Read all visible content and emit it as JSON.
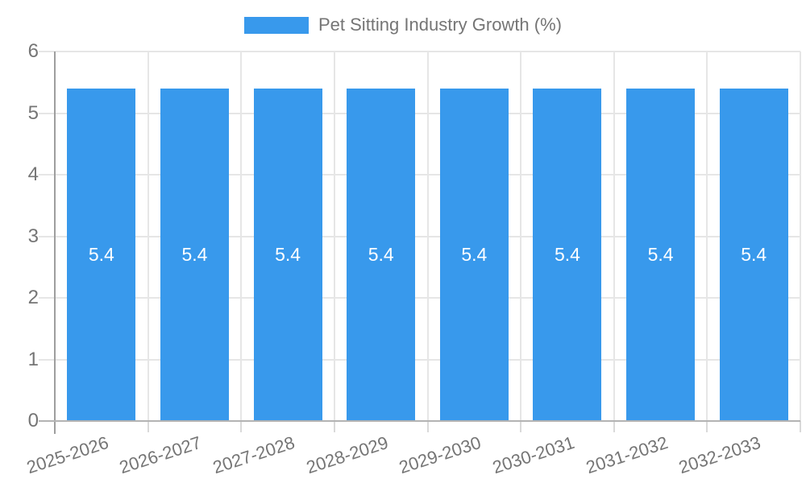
{
  "legend": {
    "label": "Pet Sitting Industry Growth (%)"
  },
  "chart_data": {
    "type": "bar",
    "title": "Pet Sitting Industry Growth (%)",
    "categories": [
      "2025-2026",
      "2026-2027",
      "2027-2028",
      "2028-2029",
      "2029-2030",
      "2030-2031",
      "2031-2032",
      "2032-2033"
    ],
    "series": [
      {
        "name": "Pet Sitting Industry Growth (%)",
        "values": [
          5.4,
          5.4,
          5.4,
          5.4,
          5.4,
          5.4,
          5.4,
          5.4
        ]
      }
    ],
    "value_labels": [
      "5.4",
      "5.4",
      "5.4",
      "5.4",
      "5.4",
      "5.4",
      "5.4",
      "5.4"
    ],
    "xlabel": "",
    "ylabel": "",
    "ylim": [
      0,
      6
    ],
    "y_ticks": [
      0,
      1,
      2,
      3,
      4,
      5,
      6
    ],
    "grid": true,
    "legend_position": "top-center",
    "colors": {
      "bar": "#3899EC",
      "value_label": "#FFFFFF",
      "axis_text": "#757575",
      "grid_line": "#E6E6E6",
      "axis_line": "#9E9E9E",
      "baseline": "#B3B3B3",
      "tick_mark": "#D9D9D9",
      "background": "#FFFFFF"
    }
  }
}
